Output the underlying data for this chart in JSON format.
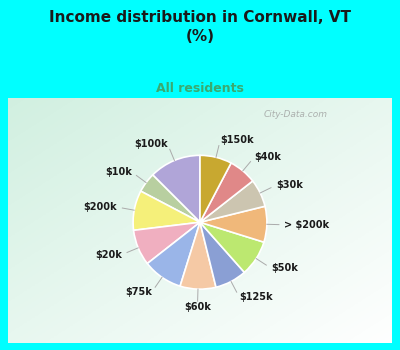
{
  "title": "Income distribution in Cornwall, VT\n(%)",
  "subtitle": "All residents",
  "bg_color": "#00FFFF",
  "chart_bg": "#d8eee5",
  "labels": [
    "$100k",
    "$10k",
    "$200k",
    "$20k",
    "$75k",
    "$60k",
    "$125k",
    "$50k",
    "> $200k",
    "$30k",
    "$40k",
    "$150k"
  ],
  "values": [
    13,
    5,
    10,
    9,
    10,
    9,
    8,
    9,
    9,
    7,
    7,
    8
  ],
  "colors": [
    "#b0a5d8",
    "#b8cfa0",
    "#f5f07a",
    "#f0afc0",
    "#9ab5e8",
    "#f5c9a5",
    "#8a9fd4",
    "#bce870",
    "#f0b87a",
    "#ccc5b0",
    "#e08888",
    "#c8a830"
  ],
  "startangle": 90,
  "watermark": "City-Data.com"
}
